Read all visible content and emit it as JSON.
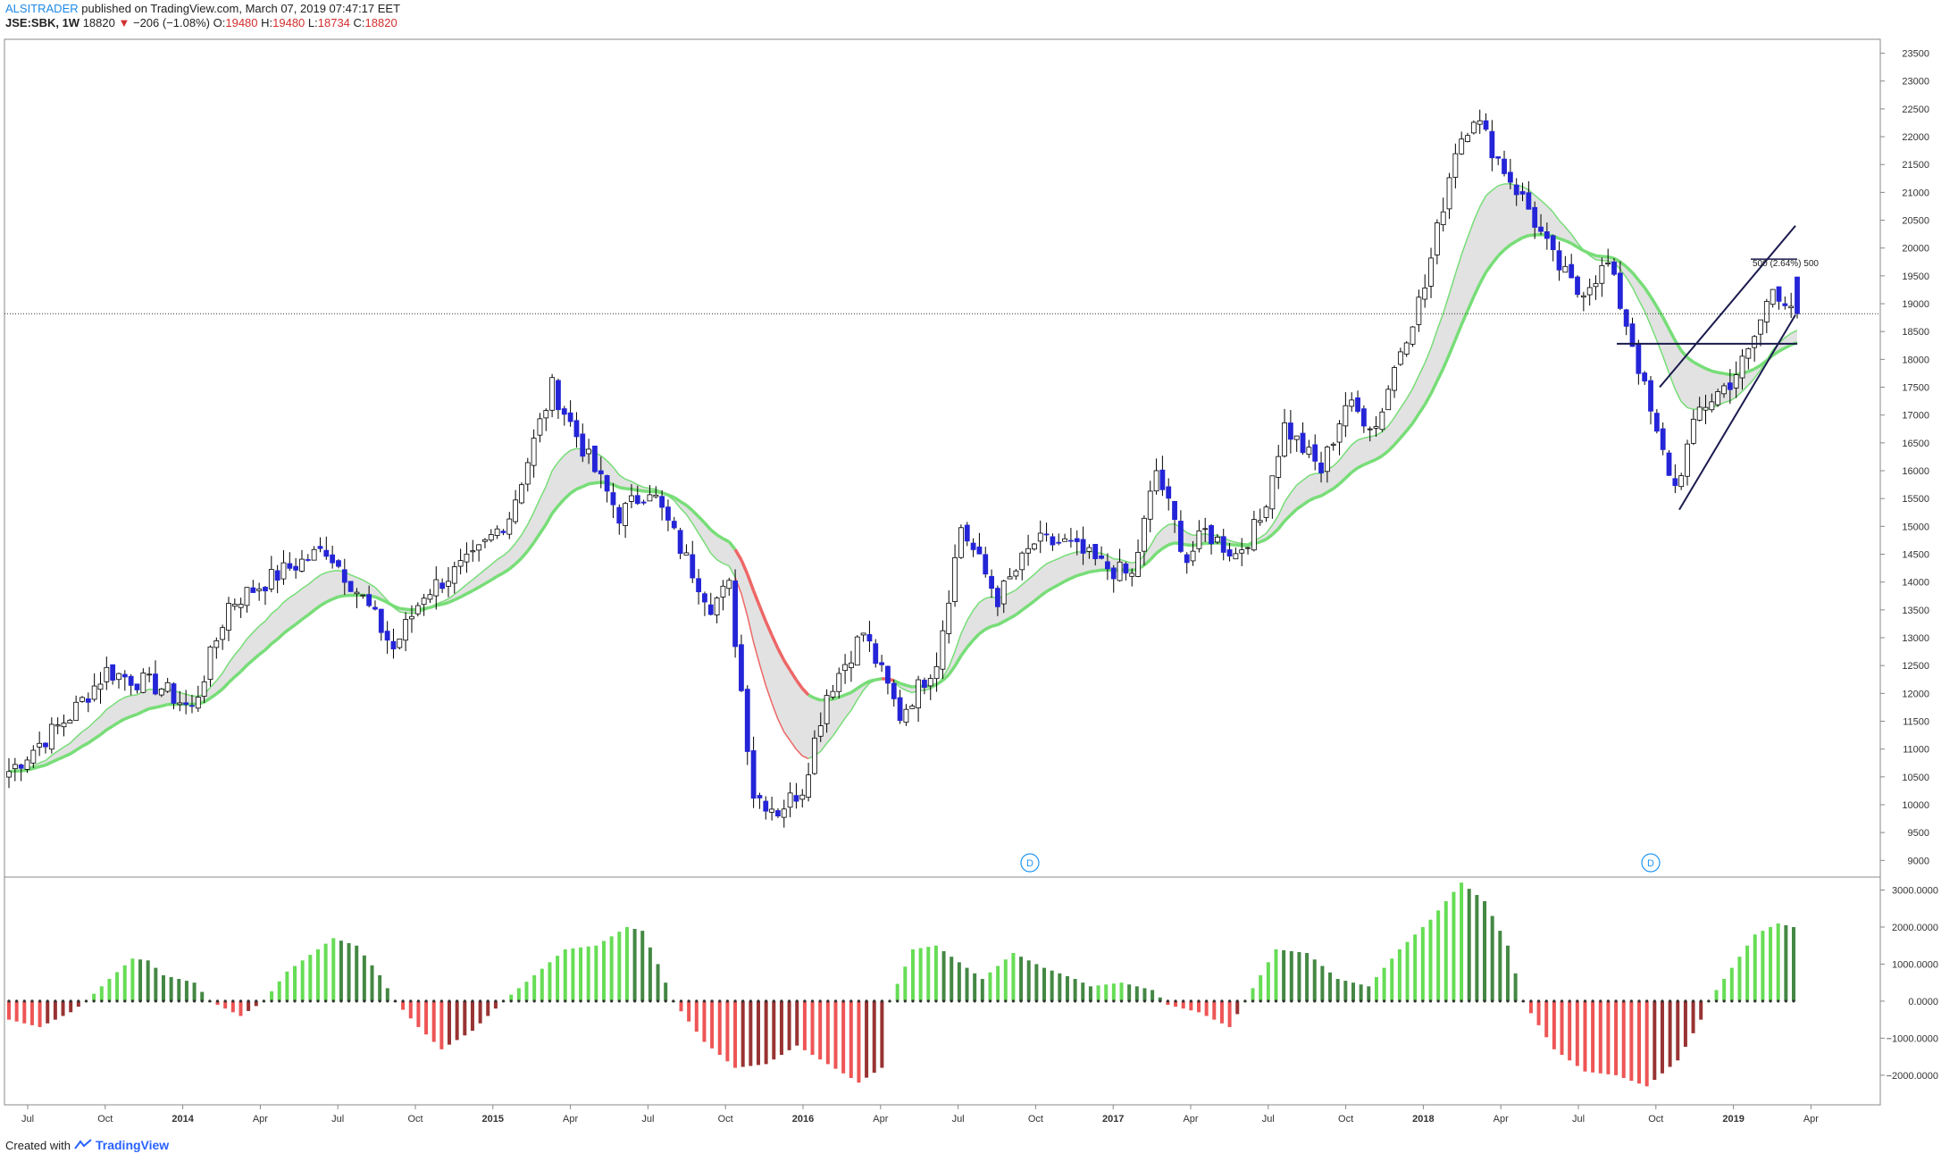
{
  "header": {
    "publisher": "ALSITRADER",
    "published_text": "published on TradingView.com, March 07, 2019 07:47:17 EET",
    "symbol": "JSE:SBK, 1W",
    "last": "18820",
    "change": "−206 (−1.08%)",
    "O_label": "O:",
    "O": "19480",
    "H_label": "H:",
    "H": "19480",
    "L_label": "L:",
    "L": "18734",
    "C_label": "C:",
    "C": "18820"
  },
  "footer": {
    "created_with": "Created with",
    "brand": "TradingView"
  },
  "annotation": {
    "label": "500 (2.64%) 500"
  },
  "dividend_marker": "D",
  "colors": {
    "up_body": "#ffffff",
    "down_body": "#2424d8",
    "wick": "#000000",
    "ema_up": "#77dd77",
    "ema_down": "#ee6666",
    "cloud": "#d8d8d8",
    "hist_up_bright": "#66dd55",
    "hist_up_dark": "#448844",
    "hist_dn_bright": "#ee5555",
    "hist_dn_dark": "#993333",
    "trendline": "#1a1a4e"
  },
  "chart_data": {
    "type": "candlestick",
    "timeframe": "1W",
    "price_axis": {
      "ticks": [
        9000,
        9500,
        10000,
        10500,
        11000,
        11500,
        12000,
        12500,
        13000,
        13500,
        14000,
        14500,
        15000,
        15500,
        16000,
        16500,
        17000,
        17500,
        18000,
        18500,
        19000,
        19500,
        20000,
        20500,
        21000,
        21500,
        22000,
        22500,
        23000,
        23500
      ],
      "ylim": [
        8700,
        23750
      ]
    },
    "osc_axis": {
      "ticks": [
        3000,
        2000,
        1000,
        0,
        -1000,
        -2000
      ],
      "tick_labels": [
        "3000.0000",
        "2000.0000",
        "1000.0000",
        "0.0000",
        "−1000.0000",
        "−2000.0000"
      ],
      "ylim": [
        -2800,
        3350
      ]
    },
    "time_axis": {
      "labels": [
        "Jul",
        "Oct",
        "2014",
        "Apr",
        "Jul",
        "Oct",
        "2015",
        "Apr",
        "Jul",
        "Oct",
        "2016",
        "Apr",
        "Jul",
        "Oct",
        "2017",
        "Apr",
        "Jul",
        "Oct",
        "2018",
        "Apr",
        "Jul",
        "Oct",
        "2019",
        "Apr"
      ],
      "bold": [
        false,
        false,
        true,
        false,
        false,
        false,
        true,
        false,
        false,
        false,
        true,
        false,
        false,
        false,
        true,
        false,
        false,
        false,
        true,
        false,
        false,
        false,
        true,
        false
      ]
    },
    "close_anchors": [
      [
        0,
        10600
      ],
      [
        10,
        11600
      ],
      [
        16,
        12400
      ],
      [
        25,
        12100
      ],
      [
        30,
        11700
      ],
      [
        36,
        13600
      ],
      [
        45,
        14200
      ],
      [
        52,
        14600
      ],
      [
        58,
        13700
      ],
      [
        63,
        12800
      ],
      [
        68,
        13800
      ],
      [
        76,
        14400
      ],
      [
        82,
        15200
      ],
      [
        89,
        17500
      ],
      [
        95,
        16200
      ],
      [
        100,
        15200
      ],
      [
        105,
        15700
      ],
      [
        111,
        14400
      ],
      [
        115,
        13600
      ],
      [
        118,
        13900
      ],
      [
        122,
        10200
      ],
      [
        126,
        9900
      ],
      [
        130,
        10300
      ],
      [
        134,
        12000
      ],
      [
        140,
        13100
      ],
      [
        146,
        11600
      ],
      [
        152,
        12600
      ],
      [
        156,
        15000
      ],
      [
        162,
        13700
      ],
      [
        168,
        14700
      ],
      [
        173,
        14700
      ],
      [
        179,
        14300
      ],
      [
        184,
        14100
      ],
      [
        188,
        16000
      ],
      [
        193,
        14400
      ],
      [
        196,
        14900
      ],
      [
        201,
        14500
      ],
      [
        205,
        15100
      ],
      [
        209,
        16800
      ],
      [
        215,
        16000
      ],
      [
        219,
        17200
      ],
      [
        224,
        16800
      ],
      [
        228,
        18200
      ],
      [
        232,
        19300
      ],
      [
        237,
        21800
      ],
      [
        240,
        22400
      ],
      [
        244,
        21600
      ],
      [
        249,
        20700
      ],
      [
        253,
        19800
      ],
      [
        257,
        19200
      ],
      [
        262,
        19700
      ],
      [
        266,
        18300
      ],
      [
        270,
        16600
      ],
      [
        273,
        15700
      ],
      [
        277,
        17100
      ],
      [
        282,
        17600
      ],
      [
        285,
        18100
      ],
      [
        289,
        19300
      ],
      [
        292,
        19000
      ],
      [
        293,
        18820
      ]
    ],
    "candle_count": 294,
    "oscillator_anchors": [
      [
        0,
        -500
      ],
      [
        4,
        -700
      ],
      [
        8,
        -300
      ],
      [
        10,
        0
      ],
      [
        13,
        600
      ],
      [
        16,
        1150
      ],
      [
        18,
        1100
      ],
      [
        20,
        700
      ],
      [
        24,
        500
      ],
      [
        26,
        0
      ],
      [
        30,
        -400
      ],
      [
        33,
        0
      ],
      [
        36,
        800
      ],
      [
        42,
        1700
      ],
      [
        45,
        1500
      ],
      [
        48,
        700
      ],
      [
        50,
        0
      ],
      [
        53,
        -700
      ],
      [
        56,
        -1300
      ],
      [
        60,
        -800
      ],
      [
        63,
        -200
      ],
      [
        64,
        0
      ],
      [
        68,
        700
      ],
      [
        72,
        1400
      ],
      [
        76,
        1500
      ],
      [
        80,
        2000
      ],
      [
        82,
        1900
      ],
      [
        84,
        1000
      ],
      [
        86,
        0
      ],
      [
        90,
        -1100
      ],
      [
        94,
        -1800
      ],
      [
        98,
        -1700
      ],
      [
        102,
        -1200
      ],
      [
        106,
        -1700
      ],
      [
        110,
        -2200
      ],
      [
        113,
        -1800
      ],
      [
        114,
        0
      ],
      [
        117,
        1400
      ],
      [
        120,
        1500
      ],
      [
        124,
        900
      ],
      [
        126,
        600
      ],
      [
        130,
        1300
      ],
      [
        134,
        900
      ],
      [
        138,
        600
      ],
      [
        140,
        400
      ],
      [
        144,
        500
      ],
      [
        148,
        300
      ],
      [
        150,
        -100
      ],
      [
        154,
        -300
      ],
      [
        158,
        -700
      ],
      [
        160,
        0
      ],
      [
        164,
        1400
      ],
      [
        168,
        1300
      ],
      [
        172,
        600
      ],
      [
        176,
        400
      ],
      [
        180,
        1400
      ],
      [
        184,
        2200
      ],
      [
        188,
        3200
      ],
      [
        191,
        2700
      ],
      [
        194,
        1500
      ],
      [
        196,
        0
      ],
      [
        200,
        -1300
      ],
      [
        204,
        -1900
      ],
      [
        208,
        -2000
      ],
      [
        212,
        -2300
      ],
      [
        216,
        -1600
      ],
      [
        219,
        -500
      ],
      [
        220,
        0
      ],
      [
        223,
        900
      ],
      [
        226,
        1800
      ],
      [
        229,
        2100
      ],
      [
        231,
        2000
      ]
    ]
  }
}
